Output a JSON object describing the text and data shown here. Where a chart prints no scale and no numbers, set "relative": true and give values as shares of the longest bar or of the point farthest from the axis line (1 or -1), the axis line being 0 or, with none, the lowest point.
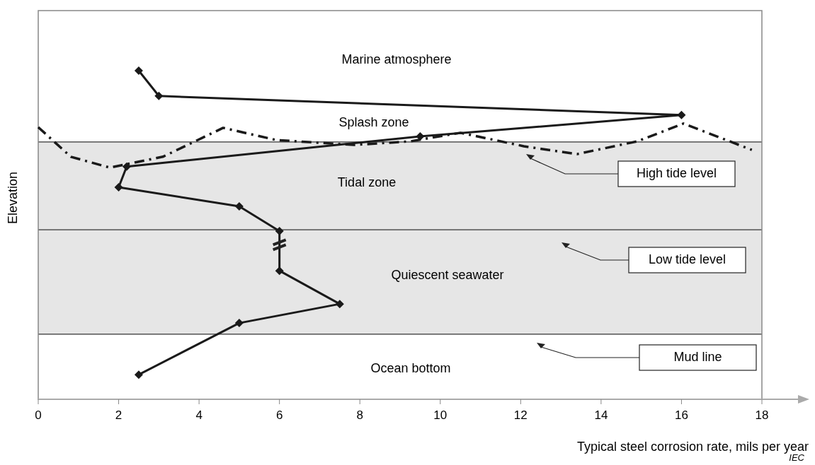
{
  "chart_data": {
    "type": "line",
    "relative": true,
    "xlabel": "Typical steel corrosion rate, mils per year",
    "ylabel": "Elevation",
    "xlim": [
      0,
      18
    ],
    "xticks": [
      0,
      2,
      4,
      6,
      8,
      10,
      12,
      14,
      16,
      18
    ],
    "grid": false,
    "series": [
      {
        "color": "#1a1a1a",
        "marker": "diamond",
        "line_style": "solid",
        "x": [
          2.5,
          3.0,
          16.0,
          9.5,
          2.2,
          2.0,
          5.0,
          6.0,
          6.0,
          7.5,
          5.0,
          2.5
        ],
        "values": [
          1,
          0.923,
          0.865,
          0.8,
          0.708,
          0.645,
          0.587,
          0.512,
          0.391,
          0.29,
          0.232,
          0.075
        ]
      },
      {
        "color": "#1a1a1a",
        "marker": "none",
        "line_style": "dashed",
        "x": [
          0,
          0.81,
          1.78,
          3.1,
          4.6,
          5.92,
          7.85,
          9.26,
          10.5,
          12.08,
          13.4,
          14.9,
          16.05,
          17.75
        ],
        "values": [
          0.828,
          0.738,
          0.705,
          0.738,
          0.826,
          0.789,
          0.774,
          0.785,
          0.811,
          0.77,
          0.746,
          0.785,
          0.839,
          0.759
        ]
      }
    ],
    "bands": [
      {
        "axis": "y",
        "from": 0.516,
        "to": 0.783,
        "label": "Tidal zone",
        "color": "#e6e6e6"
      },
      {
        "axis": "y",
        "from": 0.198,
        "to": 0.516,
        "label": "Quiescent seawater",
        "color": "#e6e6e6"
      }
    ],
    "ref_lines": [
      {
        "axis": "y",
        "value": 0.783,
        "label": "High tide level"
      },
      {
        "axis": "y",
        "value": 0.516,
        "label": "Low tide level"
      },
      {
        "axis": "y",
        "value": 0.198,
        "label": "Mud line"
      }
    ],
    "annotations": [
      "Marine atmosphere",
      "Splash zone",
      "Ocean bottom",
      "IEC"
    ]
  }
}
